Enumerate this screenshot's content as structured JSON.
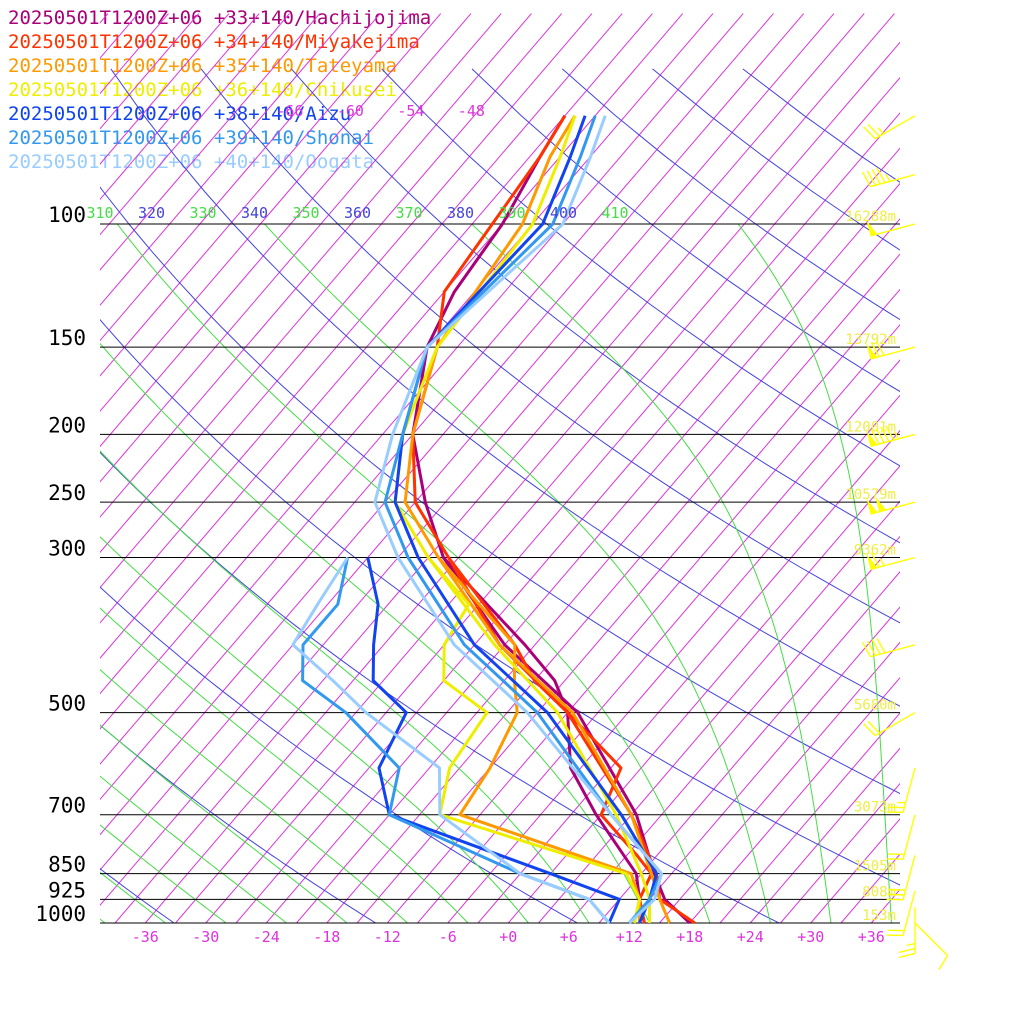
{
  "chart_data": {
    "type": "line",
    "title": "",
    "xlabel": "",
    "ylabel": "",
    "xlim": [
      -40,
      40
    ],
    "ylim": [
      1000,
      100
    ],
    "x_scale": "skew-T temperature (°C)",
    "y_scale": "log pressure (hPa)",
    "grid": true,
    "legend_placement": "top-left",
    "pressure_ticks": [
      "100",
      "150",
      "200",
      "250",
      "300",
      "500",
      "700",
      "850",
      "925",
      "1000"
    ],
    "pressure_levels": [
      100,
      150,
      200,
      250,
      300,
      500,
      700,
      850,
      925,
      1000
    ],
    "temperature_ticks": [
      "-36",
      "-30",
      "-24",
      "-18",
      "-12",
      "-6",
      "+0",
      "+6",
      "+12",
      "+18",
      "+24",
      "+30",
      "+36"
    ],
    "temperature_values": [
      -36,
      -30,
      -24,
      -18,
      -12,
      -6,
      0,
      6,
      12,
      18,
      24,
      30,
      36
    ],
    "upper_isotherm_labels": [
      "-66",
      "-60",
      "-54",
      "-48"
    ],
    "upper_isotherm_values": [
      -66,
      -60,
      -54,
      -48
    ],
    "isentrope_labels": [
      "310",
      "320",
      "330",
      "340",
      "350",
      "360",
      "370",
      "380",
      "390",
      "400",
      "410"
    ],
    "isentrope_values": [
      310,
      320,
      330,
      340,
      350,
      360,
      370,
      380,
      390,
      400,
      410
    ],
    "height_labels": [
      {
        "p": 100,
        "label": "16288m"
      },
      {
        "p": 150,
        "label": "13792m"
      },
      {
        "p": 200,
        "label": "12001m"
      },
      {
        "p": 250,
        "label": "10579m"
      },
      {
        "p": 300,
        "label": "9362m"
      },
      {
        "p": 500,
        "label": "5680m"
      },
      {
        "p": 700,
        "label": "3073m"
      },
      {
        "p": 850,
        "label": "1505m"
      },
      {
        "p": 925,
        "label": "808m"
      },
      {
        "p": 1000,
        "label": "153m"
      }
    ],
    "colors": {
      "isotherm": "#dd33dd",
      "dry_adiabat": "#4444dd",
      "moist_adiabat": "#44dd44",
      "isobar": "#000000",
      "wind_barb": "#ffff00",
      "height_label": "#eeee44"
    },
    "wind_barbs_note": "wind barbs at right for the Chikusei sounding",
    "series": [
      {
        "name": "20250501T1200Z+06 +33+140/Hachijojima",
        "color": "#aa0077",
        "temperature": [
          [
            1000,
            18
          ],
          [
            925,
            13.5
          ],
          [
            850,
            10.3
          ],
          [
            700,
            3.5
          ],
          [
            500,
            -11
          ],
          [
            400,
            -24
          ],
          [
            300,
            -37.5
          ],
          [
            250,
            -44
          ],
          [
            200,
            -51
          ],
          [
            150,
            -57
          ],
          [
            125,
            -59
          ],
          [
            100,
            -60
          ],
          [
            80,
            -62
          ],
          [
            70,
            -63
          ]
        ],
        "dewpoint": [
          [
            1000,
            13.5
          ],
          [
            925,
            11
          ],
          [
            850,
            8.5
          ],
          [
            700,
            -0.5
          ],
          [
            600,
            -7
          ],
          [
            500,
            -12
          ],
          [
            450,
            -16
          ],
          [
            400,
            -22
          ],
          [
            300,
            -37.5
          ]
        ]
      },
      {
        "name": "20250501T1200Z+06 +34+140/Miyakejima",
        "color": "#ff3300",
        "temperature": [
          [
            1000,
            18.5
          ],
          [
            925,
            13
          ],
          [
            850,
            10.5
          ],
          [
            700,
            3
          ],
          [
            500,
            -12
          ],
          [
            400,
            -24.5
          ],
          [
            300,
            -37
          ],
          [
            250,
            -45
          ],
          [
            200,
            -51
          ],
          [
            150,
            -56
          ],
          [
            125,
            -60
          ],
          [
            100,
            -61
          ],
          [
            80,
            -62
          ],
          [
            70,
            -63
          ]
        ],
        "dewpoint": [
          [
            1000,
            13.5
          ],
          [
            925,
            11
          ],
          [
            850,
            10
          ],
          [
            800,
            7
          ],
          [
            700,
            0
          ],
          [
            600,
            -2
          ],
          [
            500,
            -12
          ],
          [
            450,
            -18
          ],
          [
            400,
            -23
          ],
          [
            300,
            -37
          ]
        ]
      },
      {
        "name": "20250501T1200Z+06 +35+140/Tateyama",
        "color": "#ff9900",
        "temperature": [
          [
            1000,
            16
          ],
          [
            925,
            13
          ],
          [
            850,
            10
          ],
          [
            700,
            3
          ],
          [
            500,
            -11.5
          ],
          [
            400,
            -24.5
          ],
          [
            300,
            -38
          ],
          [
            250,
            -46
          ],
          [
            200,
            -51
          ],
          [
            150,
            -56
          ],
          [
            100,
            -58
          ],
          [
            80,
            -61
          ],
          [
            70,
            -62
          ]
        ],
        "dewpoint": [
          [
            1000,
            13
          ],
          [
            925,
            11
          ],
          [
            850,
            8
          ],
          [
            700,
            -14
          ],
          [
            600,
            -15
          ],
          [
            500,
            -17
          ],
          [
            450,
            -20
          ],
          [
            400,
            -23
          ],
          [
            350,
            -30
          ],
          [
            300,
            -38
          ]
        ]
      },
      {
        "name": "20250501T1200Z+06 +36+140/Chikusei",
        "color": "#eeee00",
        "temperature": [
          [
            1000,
            14
          ],
          [
            925,
            12
          ],
          [
            850,
            9
          ],
          [
            700,
            1.5
          ],
          [
            500,
            -13
          ],
          [
            400,
            -25
          ],
          [
            300,
            -39
          ],
          [
            250,
            -47
          ],
          [
            200,
            -52
          ],
          [
            150,
            -56
          ],
          [
            100,
            -57
          ],
          [
            80,
            -60
          ],
          [
            70,
            -62
          ]
        ],
        "dewpoint": [
          [
            1000,
            12.5
          ],
          [
            925,
            11
          ],
          [
            850,
            7.5
          ],
          [
            700,
            -16
          ],
          [
            600,
            -19
          ],
          [
            500,
            -20
          ],
          [
            450,
            -27
          ],
          [
            400,
            -30
          ],
          [
            350,
            -31
          ],
          [
            300,
            -39
          ]
        ]
      },
      {
        "name": "20250501T1200Z+06 +38+140/Aizu",
        "color": "#1144ee",
        "temperature": [
          [
            1000,
            13
          ],
          [
            925,
            12
          ],
          [
            850,
            10.5
          ],
          [
            700,
            2
          ],
          [
            500,
            -14
          ],
          [
            400,
            -27
          ],
          [
            300,
            -40
          ],
          [
            250,
            -47
          ],
          [
            200,
            -52
          ],
          [
            150,
            -57
          ],
          [
            100,
            -56
          ],
          [
            80,
            -59
          ],
          [
            70,
            -61
          ]
        ],
        "dewpoint": [
          [
            1000,
            10
          ],
          [
            925,
            9
          ],
          [
            850,
            0
          ],
          [
            700,
            -21
          ],
          [
            600,
            -26
          ],
          [
            500,
            -28
          ],
          [
            450,
            -34
          ],
          [
            400,
            -37
          ],
          [
            350,
            -40
          ],
          [
            300,
            -45
          ]
        ]
      },
      {
        "name": "20250501T1200Z+06 +39+140/Shonai",
        "color": "#3399ee",
        "temperature": [
          [
            1000,
            12
          ],
          [
            925,
            12
          ],
          [
            850,
            11
          ],
          [
            700,
            1
          ],
          [
            500,
            -15
          ],
          [
            400,
            -28
          ],
          [
            300,
            -41
          ],
          [
            250,
            -48
          ],
          [
            200,
            -52
          ],
          [
            150,
            -57
          ],
          [
            100,
            -55
          ],
          [
            80,
            -58
          ],
          [
            70,
            -60
          ]
        ],
        "dewpoint": [
          [
            1000,
            10
          ],
          [
            925,
            6
          ],
          [
            850,
            -3
          ],
          [
            700,
            -21
          ],
          [
            600,
            -24
          ],
          [
            500,
            -34
          ],
          [
            450,
            -41
          ],
          [
            400,
            -44
          ],
          [
            350,
            -44
          ],
          [
            300,
            -47
          ]
        ]
      },
      {
        "name": "20250501T1200Z+06 +40+140/Oogata",
        "color": "#99ccff",
        "temperature": [
          [
            1000,
            12
          ],
          [
            925,
            12.5
          ],
          [
            850,
            11
          ],
          [
            700,
            1
          ],
          [
            500,
            -16
          ],
          [
            400,
            -29
          ],
          [
            300,
            -42
          ],
          [
            250,
            -49
          ],
          [
            200,
            -53
          ],
          [
            150,
            -57
          ],
          [
            100,
            -54
          ],
          [
            80,
            -57
          ],
          [
            70,
            -59
          ]
        ],
        "dewpoint": [
          [
            1000,
            10
          ],
          [
            925,
            6
          ],
          [
            850,
            -3
          ],
          [
            700,
            -16
          ],
          [
            600,
            -20
          ],
          [
            500,
            -32
          ],
          [
            450,
            -38
          ],
          [
            400,
            -45
          ],
          [
            350,
            -46
          ],
          [
            300,
            -47
          ]
        ]
      }
    ],
    "wind_barbs": [
      {
        "p": 70,
        "dir": 240,
        "speed_kt": 25
      },
      {
        "p": 85,
        "dir": 255,
        "speed_kt": 45
      },
      {
        "p": 100,
        "dir": 255,
        "speed_kt": 50
      },
      {
        "p": 150,
        "dir": 255,
        "speed_kt": 70
      },
      {
        "p": 200,
        "dir": 255,
        "speed_kt": 95
      },
      {
        "p": 250,
        "dir": 255,
        "speed_kt": 100
      },
      {
        "p": 300,
        "dir": 255,
        "speed_kt": 65
      },
      {
        "p": 400,
        "dir": 255,
        "speed_kt": 40
      },
      {
        "p": 500,
        "dir": 240,
        "speed_kt": 20
      },
      {
        "p": 600,
        "dir": 195,
        "speed_kt": 25
      },
      {
        "p": 700,
        "dir": 195,
        "speed_kt": 20
      },
      {
        "p": 800,
        "dir": 195,
        "speed_kt": 30
      },
      {
        "p": 900,
        "dir": 195,
        "speed_kt": 20
      },
      {
        "p": 950,
        "dir": 180,
        "speed_kt": 25
      },
      {
        "p": 1000,
        "dir": 135,
        "speed_kt": 10
      }
    ]
  }
}
